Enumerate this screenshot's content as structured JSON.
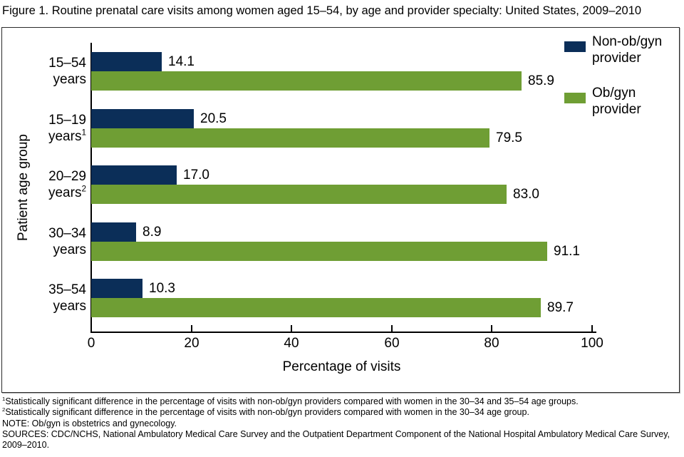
{
  "figure_title": "Figure 1. Routine prenatal care visits among women aged 15–54, by age and provider specialty: United States, 2009–2010",
  "chart_data": {
    "type": "bar",
    "orientation": "horizontal",
    "title": "Routine prenatal care visits among women aged 15–54, by age and provider specialty: United States, 2009–2010",
    "xlabel": "Percentage of visits",
    "ylabel": "Patient age group",
    "xlim": [
      0,
      100
    ],
    "xticks": [
      0,
      20,
      40,
      60,
      80,
      100
    ],
    "grid": false,
    "legend_position": "top-right",
    "categories": [
      {
        "line1": "15–54",
        "line2": "years",
        "sup": ""
      },
      {
        "line1": "15–19",
        "line2": "years",
        "sup": "1"
      },
      {
        "line1": "20–29",
        "line2": "years",
        "sup": "2"
      },
      {
        "line1": "30–34",
        "line2": "years",
        "sup": ""
      },
      {
        "line1": "35–54",
        "line2": "years",
        "sup": ""
      }
    ],
    "series": [
      {
        "name": "Non-ob/gyn provider",
        "name_lines": [
          "Non-ob/gyn",
          "provider"
        ],
        "color": "#0b2e58",
        "values": [
          14.1,
          20.5,
          17.0,
          8.9,
          10.3
        ]
      },
      {
        "name": "Ob/gyn provider",
        "name_lines": [
          "Ob/gyn",
          "provider"
        ],
        "color": "#6f9e34",
        "values": [
          85.9,
          79.5,
          83.0,
          91.1,
          89.7
        ]
      }
    ]
  },
  "footnotes": [
    {
      "sup": "1",
      "text": "Statistically significant difference in the percentage of visits with non-ob/gyn providers compared with women in the 30–34 and 35–54 age groups."
    },
    {
      "sup": "2",
      "text": "Statistically significant difference in the percentage of visits with non-ob/gyn providers compared with women in the 30–34 age group."
    },
    {
      "sup": "",
      "text": "NOTE: Ob/gyn is obstetrics and gynecology."
    },
    {
      "sup": "",
      "text": "SOURCES: CDC/NCHS, National Ambulatory Medical Care Survey and the Outpatient Department Component of the National Hospital Ambulatory Medical Care Survey, 2009–2010."
    }
  ]
}
